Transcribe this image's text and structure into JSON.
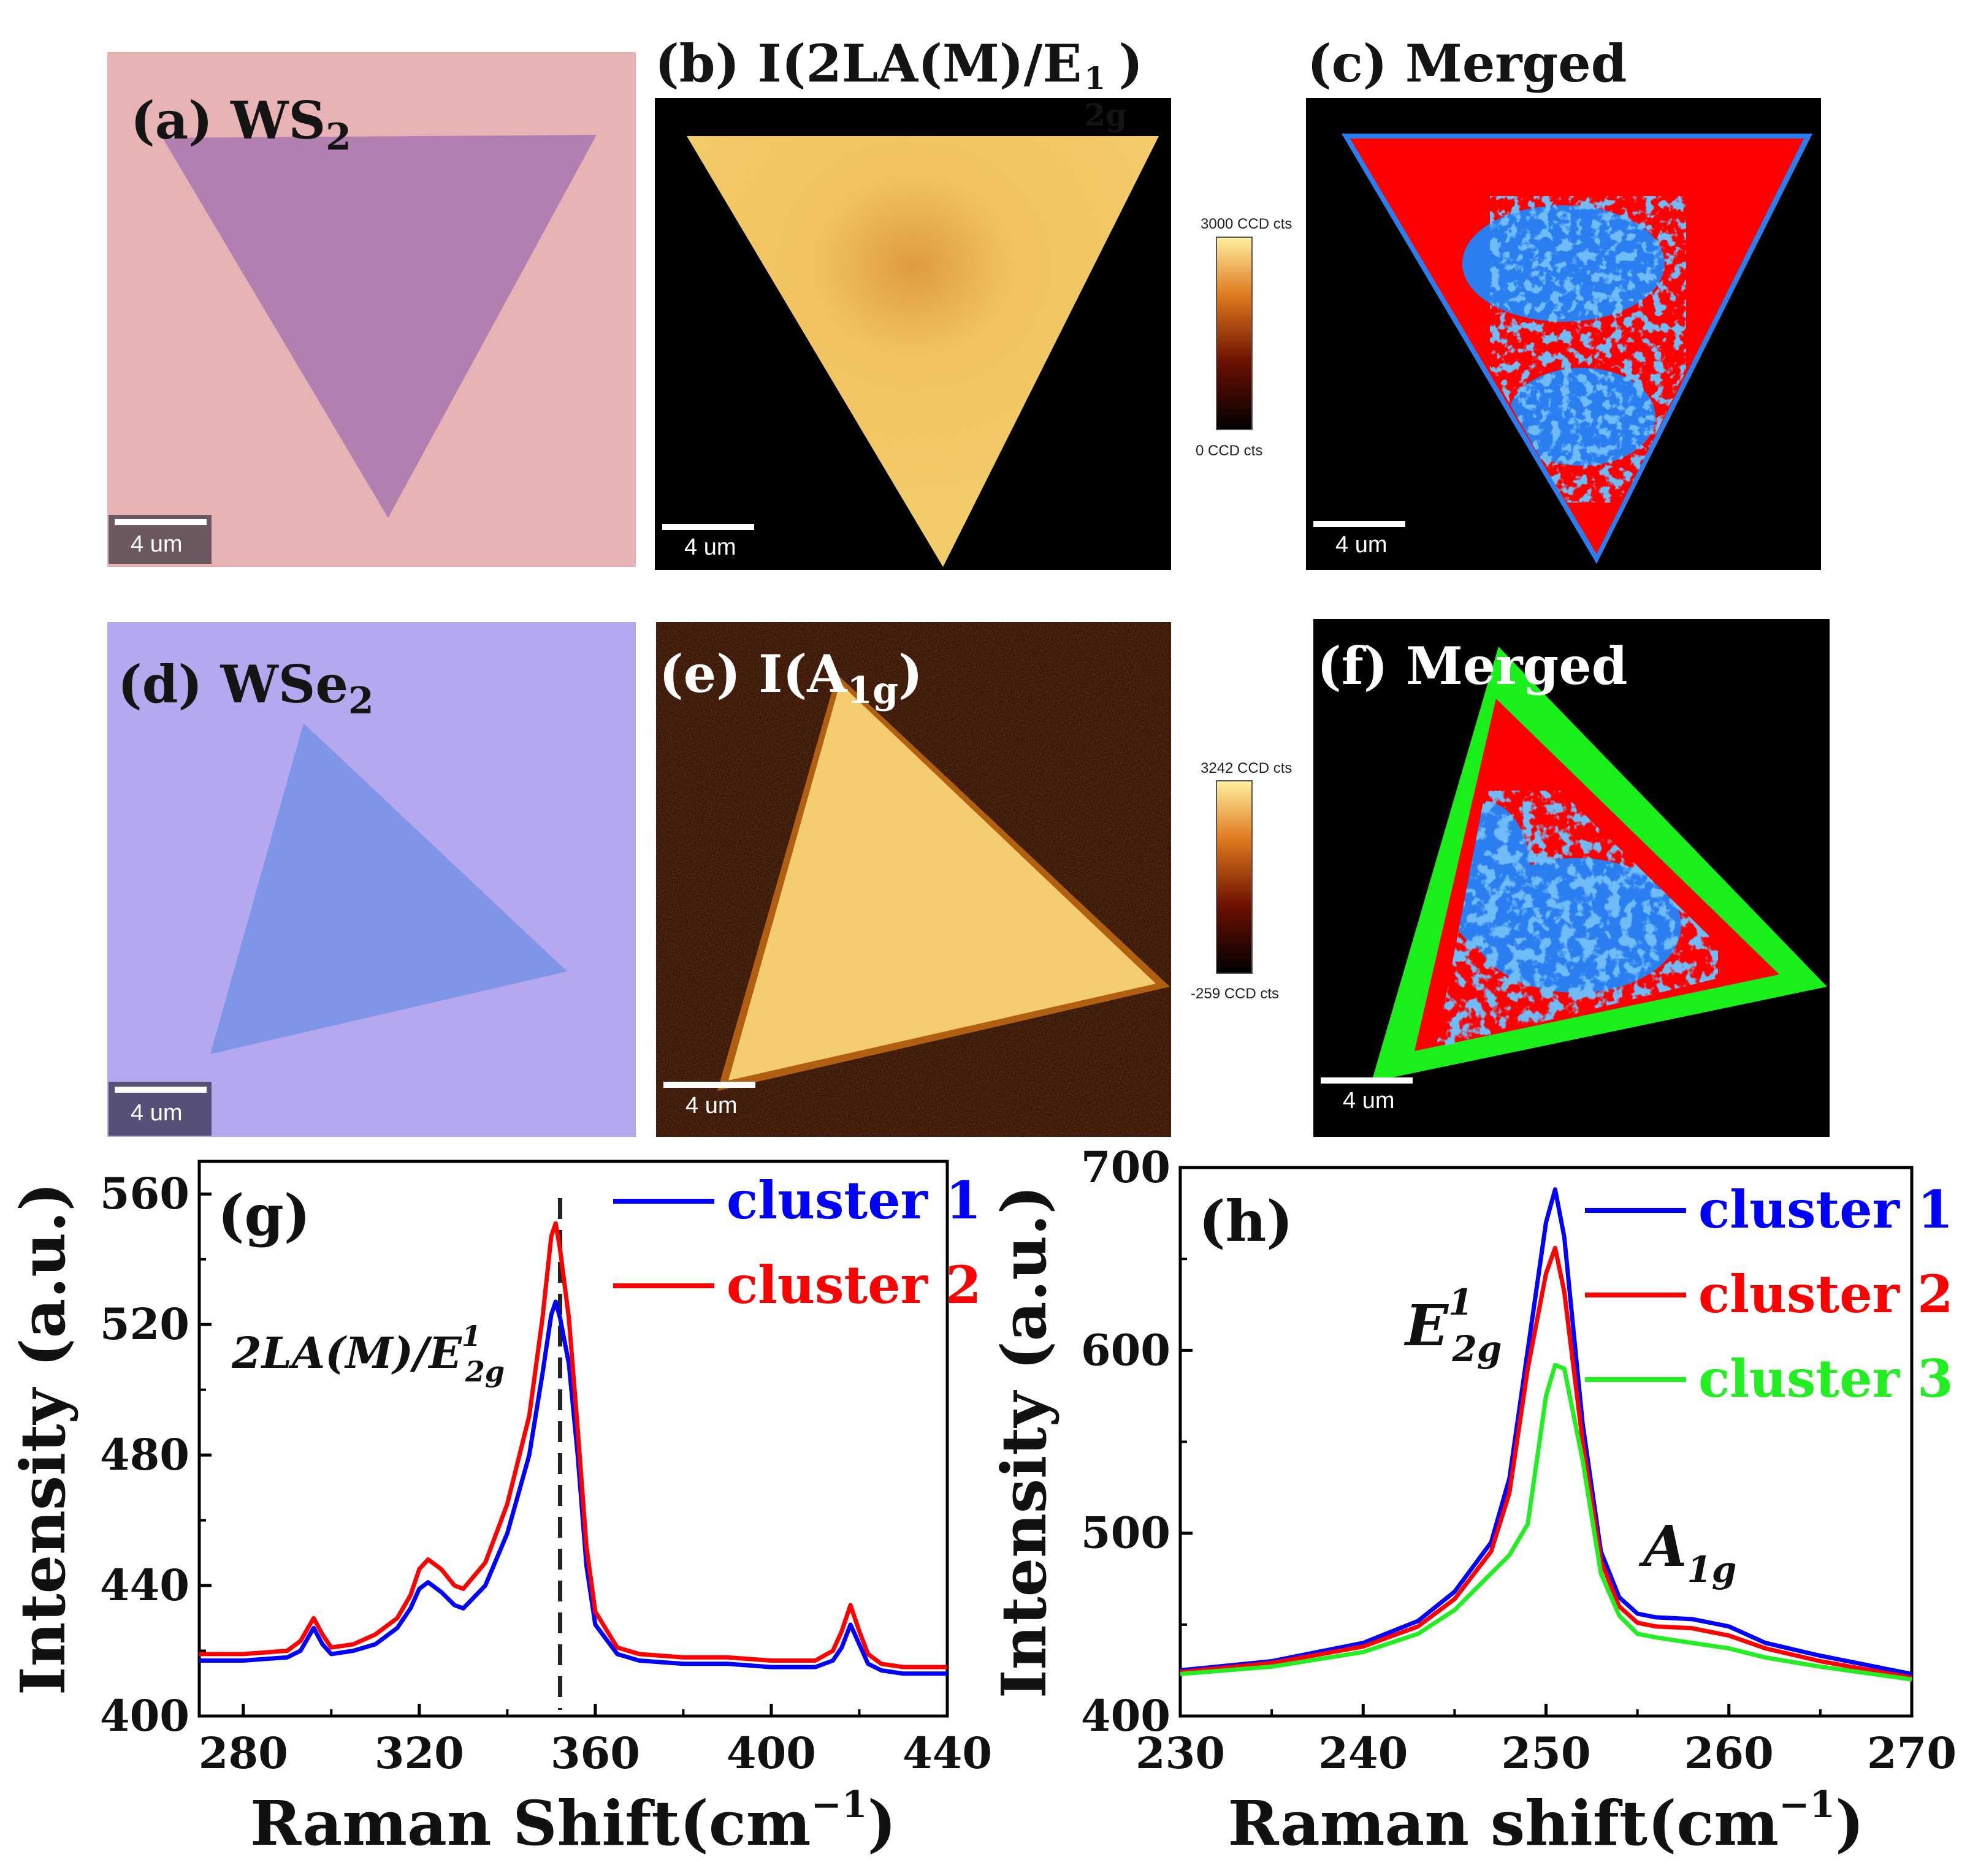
{
  "panels": {
    "a": {
      "label": "(a) WS",
      "sub": "2",
      "scale": "4 um"
    },
    "b": {
      "label": "(b) I(2LA(M)/E",
      "sup": "1",
      "sub": "2g",
      "tail": ")",
      "scale": "4 um",
      "cbar_max": "3000 CCD cts",
      "cbar_min": "0 CCD cts"
    },
    "c": {
      "label": "(c) Merged",
      "scale": "4 um"
    },
    "d": {
      "label": "(d) WSe",
      "sub": "2",
      "scale": "4 um"
    },
    "e": {
      "label": "(e) I(A",
      "sub": "1g",
      "tail": ")",
      "scale": "4 um",
      "cbar_max": "3242 CCD cts",
      "cbar_min": "-259 CCD cts"
    },
    "f": {
      "label": "(f) Merged",
      "scale": "4 um"
    }
  },
  "colors": {
    "ws2_bg": "#e8b3b5",
    "ws2_flake": "#b27fb1",
    "wse2_bg": "#b6a8ef",
    "wse2_flake": "#7f95e8",
    "map_bg": "#000000",
    "map_fill": "#f0c050",
    "cluster1": "#0000ff",
    "cluster2": "#ff0000",
    "cluster3": "#22ee22",
    "merged_blue": "#2a7ef0",
    "merged_red": "#ff0000",
    "merged_green": "#19f019"
  },
  "chart_data": [
    {
      "id": "g",
      "type": "line",
      "panel_label": "(g)",
      "annotation": "2LA(M)/E",
      "annotation_sup": "1",
      "annotation_sub": "2g",
      "xlabel": "Raman Shift(cm",
      "xlabel_sup": "−1",
      "xlabel_tail": ")",
      "ylabel": "Intensity (a.u.)",
      "xlim": [
        270,
        440
      ],
      "ylim": [
        400,
        570
      ],
      "xticks": [
        280,
        320,
        360,
        400,
        440
      ],
      "yticks": [
        400,
        440,
        480,
        520,
        560
      ],
      "dashed_line_x": 352,
      "legend": [
        "cluster 1",
        "cluster 2"
      ],
      "series": [
        {
          "name": "cluster 1",
          "x": [
            270,
            280,
            290,
            293,
            296,
            298,
            300,
            305,
            310,
            315,
            318,
            320,
            322,
            325,
            328,
            330,
            335,
            340,
            345,
            348,
            350,
            351,
            352,
            354,
            356,
            358,
            360,
            365,
            370,
            380,
            390,
            400,
            410,
            414,
            416,
            418,
            420,
            422,
            425,
            430,
            440
          ],
          "y": [
            417,
            417,
            418,
            420,
            427,
            422,
            419,
            420,
            422,
            427,
            433,
            439,
            441,
            438,
            434,
            433,
            440,
            456,
            480,
            505,
            523,
            527,
            522,
            508,
            480,
            446,
            428,
            419,
            417,
            416,
            416,
            415,
            415,
            417,
            421,
            428,
            422,
            416,
            414,
            413,
            413
          ]
        },
        {
          "name": "cluster 2",
          "x": [
            270,
            280,
            290,
            293,
            296,
            298,
            300,
            305,
            310,
            315,
            318,
            320,
            322,
            325,
            328,
            330,
            335,
            340,
            345,
            348,
            350,
            351,
            352,
            354,
            356,
            358,
            360,
            365,
            370,
            380,
            390,
            400,
            410,
            414,
            416,
            418,
            420,
            422,
            425,
            430,
            440
          ],
          "y": [
            419,
            419,
            420,
            423,
            430,
            425,
            421,
            422,
            425,
            430,
            437,
            445,
            448,
            445,
            440,
            439,
            447,
            465,
            492,
            522,
            547,
            551,
            543,
            522,
            488,
            452,
            432,
            421,
            419,
            418,
            418,
            417,
            417,
            420,
            426,
            434,
            426,
            419,
            416,
            415,
            415
          ]
        }
      ]
    },
    {
      "id": "h",
      "type": "line",
      "panel_label": "(h)",
      "annotation_e": "E",
      "annotation_e_sup": "1",
      "annotation_e_sub": "2g",
      "annotation_a": "A",
      "annotation_a_sub": "1g",
      "xlabel": "Raman shift(cm",
      "xlabel_sup": "−1",
      "xlabel_tail": ")",
      "ylabel": "Intensity (a.u.)",
      "xlim": [
        230,
        270
      ],
      "ylim": [
        400,
        700
      ],
      "xticks": [
        230,
        240,
        250,
        260,
        270
      ],
      "yticks": [
        400,
        500,
        600,
        700
      ],
      "legend": [
        "cluster 1",
        "cluster 2",
        "cluster 3"
      ],
      "series": [
        {
          "name": "cluster 1",
          "x": [
            230,
            235,
            240,
            243,
            245,
            247,
            248,
            249,
            250,
            250.5,
            251,
            252,
            253,
            254,
            255,
            256,
            258,
            260,
            262,
            265,
            270
          ],
          "y": [
            425,
            430,
            440,
            452,
            468,
            495,
            530,
            600,
            670,
            688,
            662,
            560,
            490,
            465,
            456,
            454,
            453,
            449,
            440,
            433,
            423
          ]
        },
        {
          "name": "cluster 2",
          "x": [
            230,
            235,
            240,
            243,
            245,
            247,
            248,
            249,
            250,
            250.5,
            251,
            252,
            253,
            254,
            255,
            256,
            258,
            260,
            262,
            265,
            270
          ],
          "y": [
            424,
            429,
            438,
            449,
            464,
            490,
            522,
            590,
            642,
            656,
            632,
            550,
            485,
            460,
            451,
            449,
            448,
            444,
            437,
            430,
            421
          ]
        },
        {
          "name": "cluster 3",
          "x": [
            230,
            235,
            240,
            243,
            245,
            247,
            248,
            249,
            250,
            250.5,
            251,
            252,
            253,
            254,
            255,
            256,
            258,
            260,
            262,
            265,
            270
          ],
          "y": [
            423,
            427,
            435,
            445,
            458,
            478,
            488,
            505,
            575,
            592,
            590,
            540,
            478,
            455,
            445,
            443,
            440,
            437,
            432,
            427,
            420
          ]
        }
      ]
    }
  ]
}
